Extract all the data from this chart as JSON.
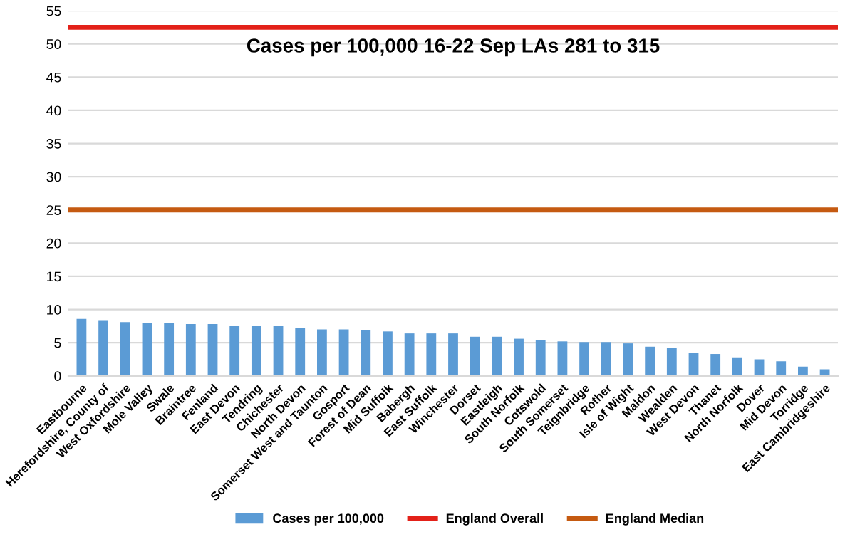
{
  "chart_data": {
    "type": "bar",
    "title": "Cases per 100,000 16-22 Sep LAs 281 to 315",
    "categories": [
      "Eastbourne",
      "Herefordshire, County of",
      "West Oxfordshire",
      "Mole Valley",
      "Swale",
      "Braintree",
      "Fenland",
      "East Devon",
      "Tendring",
      "Chichester",
      "North Devon",
      "Somerset West and Taunton",
      "Gosport",
      "Forest of Dean",
      "Mid Suffolk",
      "Babergh",
      "East Suffolk",
      "Winchester",
      "Dorset",
      "Eastleigh",
      "South Norfolk",
      "Cotswold",
      "South Somerset",
      "Teignbridge",
      "Rother",
      "Isle of Wight",
      "Maldon",
      "Wealden",
      "West Devon",
      "Thanet",
      "North Norfolk",
      "Dover",
      "Mid Devon",
      "Torridge",
      "East Cambridgeshire"
    ],
    "series": [
      {
        "name": "Cases per 100,000",
        "color": "#5b9bd5",
        "values": [
          8.6,
          8.3,
          8.1,
          8.0,
          8.0,
          7.8,
          7.8,
          7.5,
          7.5,
          7.5,
          7.2,
          7.0,
          7.0,
          6.9,
          6.7,
          6.4,
          6.4,
          6.4,
          5.9,
          5.9,
          5.6,
          5.4,
          5.2,
          5.1,
          5.1,
          4.9,
          4.4,
          4.2,
          3.5,
          3.3,
          2.8,
          2.5,
          2.2,
          1.4,
          1.0
        ]
      }
    ],
    "ref_lines": [
      {
        "axis": "y",
        "value": 52.5,
        "label": "England Overall",
        "color": "#e32119"
      },
      {
        "axis": "y",
        "value": 25,
        "label": "England Median",
        "color": "#c55a11"
      }
    ],
    "ylim": [
      0,
      55
    ],
    "yticks": [
      0,
      5,
      10,
      15,
      20,
      25,
      30,
      35,
      40,
      45,
      50,
      55
    ],
    "grid": "y",
    "legend": "bottom"
  }
}
